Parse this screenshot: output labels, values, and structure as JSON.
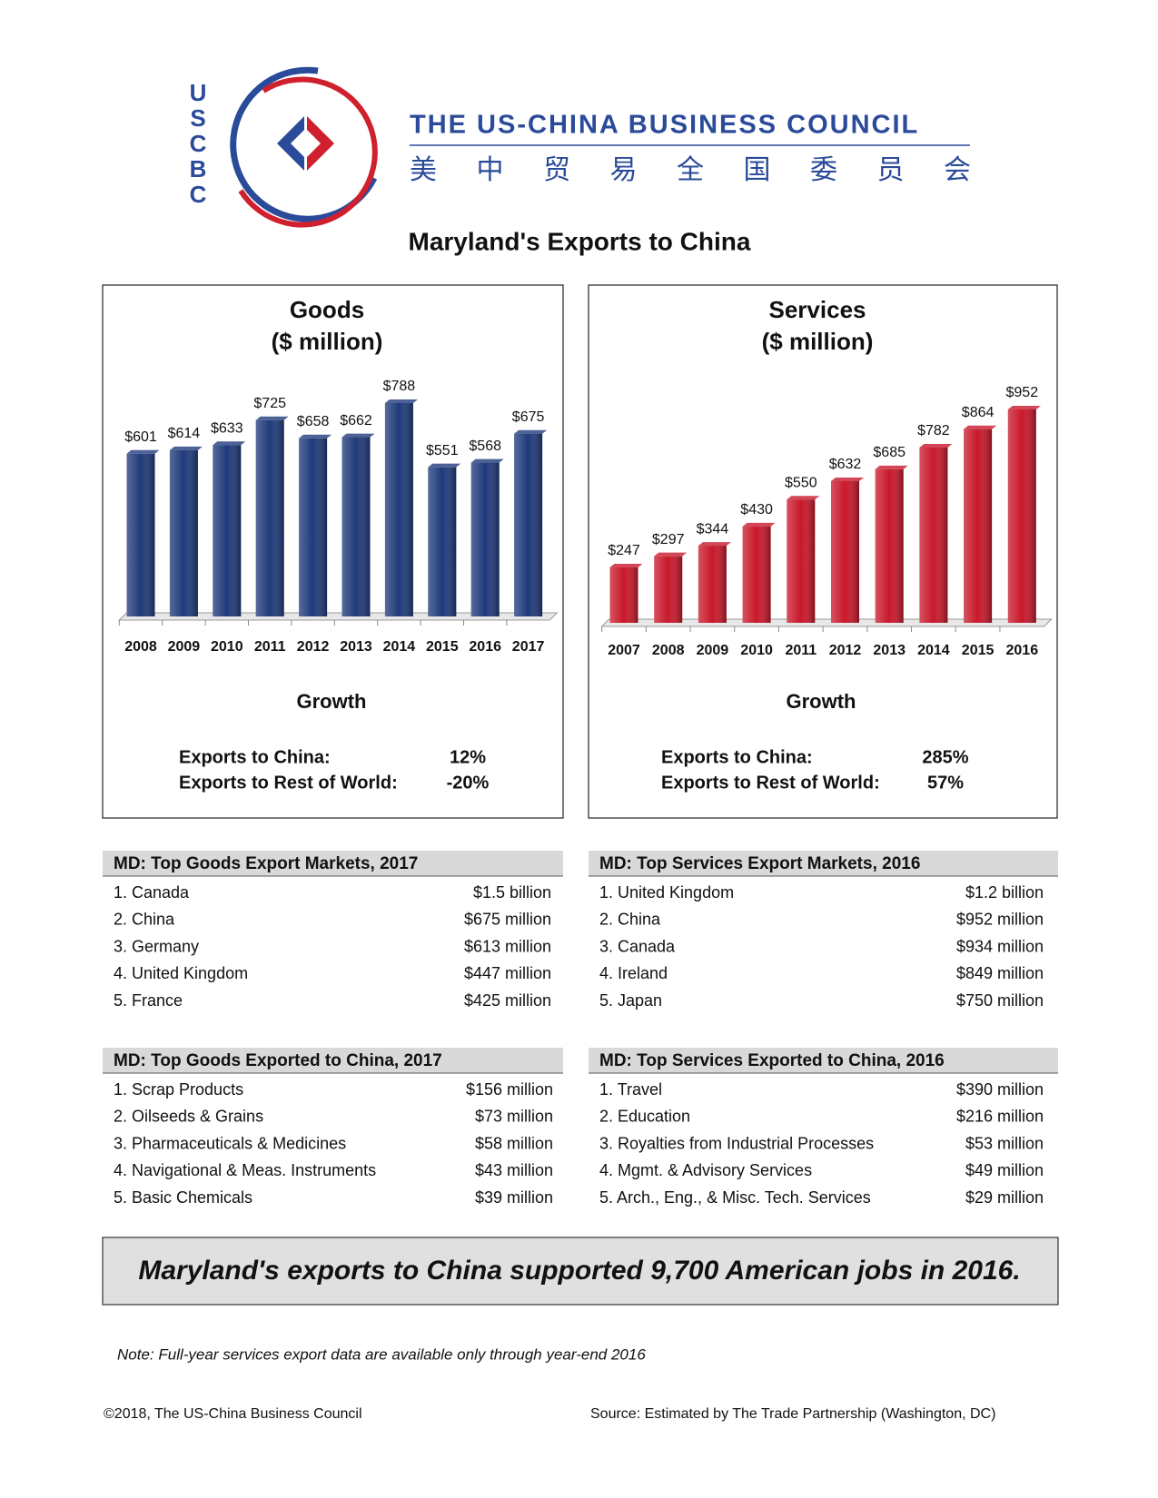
{
  "header": {
    "logo_letters": [
      "U",
      "S",
      "C",
      "B",
      "C"
    ],
    "name": "THE US-CHINA BUSINESS COUNCIL",
    "name_chinese": [
      "美",
      "中",
      "贸",
      "易",
      "全",
      "国",
      "委",
      "员",
      "会"
    ]
  },
  "title": "Maryland's Exports to China",
  "chart_data": [
    {
      "type": "bar",
      "title": "Goods",
      "subtitle": "($ million)",
      "color": "#1f3a7a",
      "categories": [
        "2008",
        "2009",
        "2010",
        "2011",
        "2012",
        "2013",
        "2014",
        "2015",
        "2016",
        "2017"
      ],
      "values": [
        601,
        614,
        633,
        725,
        658,
        662,
        788,
        551,
        568,
        675
      ],
      "value_labels": [
        "$601",
        "$614",
        "$633",
        "$725",
        "$658",
        "$662",
        "$788",
        "$551",
        "$568",
        "$675"
      ]
    },
    {
      "type": "bar",
      "title": "Services",
      "subtitle": "($ million)",
      "color": "#c8182a",
      "categories": [
        "2007",
        "2008",
        "2009",
        "2010",
        "2011",
        "2012",
        "2013",
        "2014",
        "2015",
        "2016"
      ],
      "values": [
        247,
        297,
        344,
        430,
        550,
        632,
        685,
        782,
        864,
        952
      ],
      "value_labels": [
        "$247",
        "$297",
        "$344",
        "$430",
        "$550",
        "$632",
        "$685",
        "$782",
        "$864",
        "$952"
      ]
    }
  ],
  "growth": [
    {
      "title": "Growth",
      "rows": [
        [
          "Exports to China:",
          "12%"
        ],
        [
          "Exports to Rest of World:",
          "-20%"
        ]
      ]
    },
    {
      "title": "Growth",
      "rows": [
        [
          "Exports to China:",
          "285%"
        ],
        [
          "Exports to Rest of World:",
          "57%"
        ]
      ]
    }
  ],
  "tables": [
    {
      "title": "MD: Top Goods Export Markets, 2017",
      "rows": [
        [
          "1. Canada",
          "$1.5 billion"
        ],
        [
          "2. China",
          "$675 million"
        ],
        [
          "3. Germany",
          "$613 million"
        ],
        [
          "4. United Kingdom",
          "$447 million"
        ],
        [
          "5. France",
          "$425 million"
        ]
      ]
    },
    {
      "title": "MD: Top Services Export Markets, 2016",
      "rows": [
        [
          "1. United Kingdom",
          "$1.2 billion"
        ],
        [
          "2. China",
          "$952 million"
        ],
        [
          "3. Canada",
          "$934 million"
        ],
        [
          "4. Ireland",
          "$849 million"
        ],
        [
          "5. Japan",
          "$750 million"
        ]
      ]
    },
    {
      "title": "MD: Top Goods Exported to China, 2017",
      "rows": [
        [
          "1. Scrap Products",
          "$156 million"
        ],
        [
          "2. Oilseeds & Grains",
          "$73 million"
        ],
        [
          "3. Pharmaceuticals & Medicines",
          "$58 million"
        ],
        [
          "4. Navigational & Meas. Instruments",
          "$43 million"
        ],
        [
          "5. Basic Chemicals",
          "$39 million"
        ]
      ]
    },
    {
      "title": "MD: Top Services Exported to China, 2016",
      "rows": [
        [
          "1. Travel",
          "$390 million"
        ],
        [
          "2. Education",
          "$216 million"
        ],
        [
          "3. Royalties from Industrial Processes",
          "$53 million"
        ],
        [
          "4. Mgmt. & Advisory Services",
          "$49 million"
        ],
        [
          "5. Arch., Eng., & Misc. Tech. Services",
          "$29 million"
        ]
      ]
    }
  ],
  "banner": "Maryland's exports to China supported 9,700 American jobs in 2016.",
  "note": "Note: Full-year services export data are available only through year-end 2016",
  "footer": {
    "left": "©2018, The US-China Business Council",
    "right": "Source: Estimated by The Trade Partnership (Washington, DC)"
  }
}
